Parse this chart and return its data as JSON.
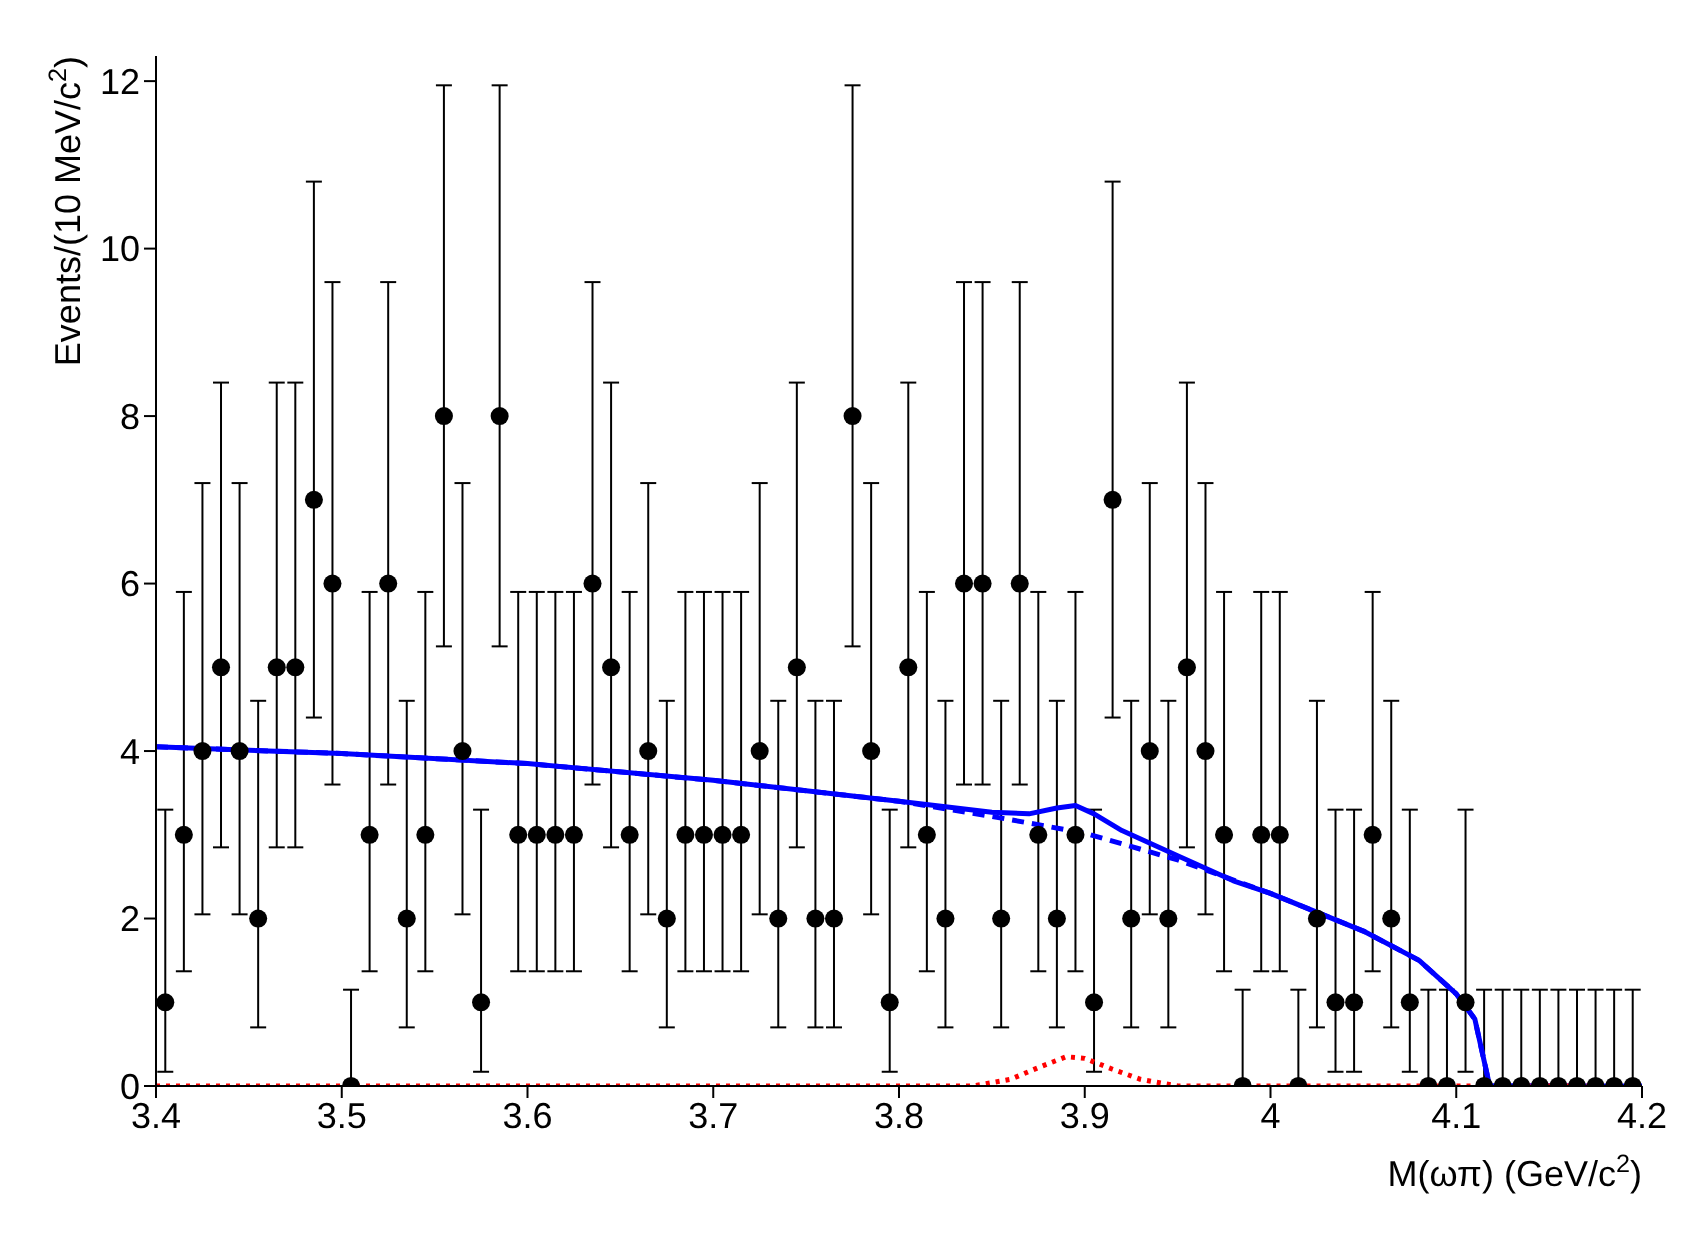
{
  "chart_data": {
    "type": "scatter",
    "xlabel": "M(ωπ) (GeV/c$^{2}$)",
    "ylabel": "Events/(10 MeV/c$^{2}$)",
    "xlim": [
      3.4,
      4.2
    ],
    "xticks": [
      3.4,
      3.5,
      3.6,
      3.7,
      3.8,
      3.9,
      4,
      4.1,
      4.2
    ],
    "ylim": [
      0,
      12.3
    ],
    "yticks": [
      0,
      2,
      4,
      6,
      8,
      10,
      12
    ],
    "grid": false,
    "series": [
      {
        "marker": "circle",
        "color": "#000000",
        "x": [
          3.405,
          3.415,
          3.425,
          3.435,
          3.445,
          3.455,
          3.465,
          3.475,
          3.485,
          3.495,
          3.505,
          3.515,
          3.525,
          3.535,
          3.545,
          3.555,
          3.565,
          3.575,
          3.585,
          3.595,
          3.605,
          3.615,
          3.625,
          3.635,
          3.645,
          3.655,
          3.665,
          3.675,
          3.685,
          3.695,
          3.705,
          3.715,
          3.725,
          3.735,
          3.745,
          3.755,
          3.765,
          3.775,
          3.785,
          3.795,
          3.805,
          3.815,
          3.825,
          3.835,
          3.845,
          3.855,
          3.865,
          3.875,
          3.885,
          3.895,
          3.905,
          3.915,
          3.925,
          3.935,
          3.945,
          3.955,
          3.965,
          3.975,
          3.985,
          3.995,
          4.005,
          4.015,
          4.025,
          4.035,
          4.045,
          4.055,
          4.065,
          4.075,
          4.085,
          4.095,
          4.105,
          4.115,
          4.125,
          4.135,
          4.145,
          4.155,
          4.165,
          4.175,
          4.185,
          4.195
        ],
        "values": [
          1,
          3,
          4,
          5,
          4,
          2,
          5,
          5,
          7,
          6,
          0,
          3,
          6,
          2,
          3,
          8,
          4,
          1,
          8,
          3,
          3,
          3,
          3,
          6,
          5,
          3,
          4,
          2,
          3,
          3,
          3,
          3,
          4,
          2,
          5,
          2,
          2,
          8,
          4,
          1,
          5,
          3,
          2,
          6,
          6,
          2,
          6,
          3,
          2,
          3,
          1,
          7,
          2,
          4,
          2,
          5,
          4,
          3,
          0,
          3,
          3,
          0,
          2,
          1,
          1,
          3,
          2,
          1,
          0,
          0,
          1,
          0,
          0,
          0,
          0,
          0,
          0,
          0,
          0,
          0
        ],
        "errors": [
          [
            0.17,
            3.3
          ],
          [
            1.37,
            5.9
          ],
          [
            2.05,
            7.2
          ],
          [
            2.85,
            8.4
          ],
          [
            2.05,
            7.2
          ],
          [
            0.7,
            4.6
          ],
          [
            2.85,
            8.4
          ],
          [
            2.85,
            8.4
          ],
          [
            4.4,
            10.8
          ],
          [
            3.6,
            9.6
          ],
          [
            0,
            1.15
          ],
          [
            1.37,
            5.9
          ],
          [
            3.6,
            9.6
          ],
          [
            0.7,
            4.6
          ],
          [
            1.37,
            5.9
          ],
          [
            5.25,
            11.95
          ],
          [
            2.05,
            7.2
          ],
          [
            0.17,
            3.3
          ],
          [
            5.25,
            11.95
          ],
          [
            1.37,
            5.9
          ],
          [
            1.37,
            5.9
          ],
          [
            1.37,
            5.9
          ],
          [
            1.37,
            5.9
          ],
          [
            3.6,
            9.6
          ],
          [
            2.85,
            8.4
          ],
          [
            1.37,
            5.9
          ],
          [
            2.05,
            7.2
          ],
          [
            0.7,
            4.6
          ],
          [
            1.37,
            5.9
          ],
          [
            1.37,
            5.9
          ],
          [
            1.37,
            5.9
          ],
          [
            1.37,
            5.9
          ],
          [
            2.05,
            7.2
          ],
          [
            0.7,
            4.6
          ],
          [
            2.85,
            8.4
          ],
          [
            0.7,
            4.6
          ],
          [
            0.7,
            4.6
          ],
          [
            5.25,
            11.95
          ],
          [
            2.05,
            7.2
          ],
          [
            0.17,
            3.3
          ],
          [
            2.85,
            8.4
          ],
          [
            1.37,
            5.9
          ],
          [
            0.7,
            4.6
          ],
          [
            3.6,
            9.6
          ],
          [
            3.6,
            9.6
          ],
          [
            0.7,
            4.6
          ],
          [
            3.6,
            9.6
          ],
          [
            1.37,
            5.9
          ],
          [
            0.7,
            4.6
          ],
          [
            1.37,
            5.9
          ],
          [
            0.17,
            3.3
          ],
          [
            4.4,
            10.8
          ],
          [
            0.7,
            4.6
          ],
          [
            2.05,
            7.2
          ],
          [
            0.7,
            4.6
          ],
          [
            2.85,
            8.4
          ],
          [
            2.05,
            7.2
          ],
          [
            1.37,
            5.9
          ],
          [
            0,
            1.15
          ],
          [
            1.37,
            5.9
          ],
          [
            1.37,
            5.9
          ],
          [
            0,
            1.15
          ],
          [
            0.7,
            4.6
          ],
          [
            0.17,
            3.3
          ],
          [
            0.17,
            3.3
          ],
          [
            1.37,
            5.9
          ],
          [
            0.7,
            4.6
          ],
          [
            0.17,
            3.3
          ],
          [
            0,
            1.15
          ],
          [
            0,
            1.15
          ],
          [
            0.17,
            3.3
          ],
          [
            0,
            1.15
          ],
          [
            0,
            1.15
          ],
          [
            0,
            1.15
          ],
          [
            0,
            1.15
          ],
          [
            0,
            1.15
          ],
          [
            0,
            1.15
          ],
          [
            0,
            1.15
          ],
          [
            0,
            1.15
          ],
          [
            0,
            1.15
          ]
        ]
      },
      {
        "type": "line",
        "marker": "none",
        "color": "#0000ff",
        "line_style": "solid",
        "x": [
          3.4,
          3.5,
          3.6,
          3.7,
          3.8,
          3.85,
          3.87,
          3.885,
          3.895,
          3.905,
          3.92,
          3.95,
          3.98,
          4.0,
          4.05,
          4.08,
          4.1,
          4.11,
          4.118,
          4.2
        ],
        "values": [
          4.05,
          3.97,
          3.85,
          3.65,
          3.4,
          3.27,
          3.25,
          3.32,
          3.35,
          3.25,
          3.05,
          2.75,
          2.45,
          2.3,
          1.85,
          1.5,
          1.1,
          0.8,
          0,
          0
        ]
      },
      {
        "type": "line",
        "marker": "none",
        "color": "#0000ff",
        "line_style": "dashed",
        "x": [
          3.4,
          3.5,
          3.6,
          3.7,
          3.8,
          3.85,
          3.9,
          3.95,
          4.0,
          4.05,
          4.08,
          4.1,
          4.11,
          4.118,
          4.2
        ],
        "values": [
          4.05,
          3.97,
          3.85,
          3.65,
          3.4,
          3.22,
          3.02,
          2.7,
          2.3,
          1.85,
          1.5,
          1.1,
          0.8,
          0,
          0
        ]
      },
      {
        "type": "line",
        "marker": "none",
        "color": "#ff0000",
        "line_style": "dotted",
        "x": [
          3.4,
          3.84,
          3.86,
          3.875,
          3.89,
          3.9,
          3.915,
          3.93,
          3.95,
          4.2
        ],
        "values": [
          0,
          0,
          0.08,
          0.22,
          0.35,
          0.33,
          0.2,
          0.08,
          0,
          0
        ]
      }
    ]
  }
}
